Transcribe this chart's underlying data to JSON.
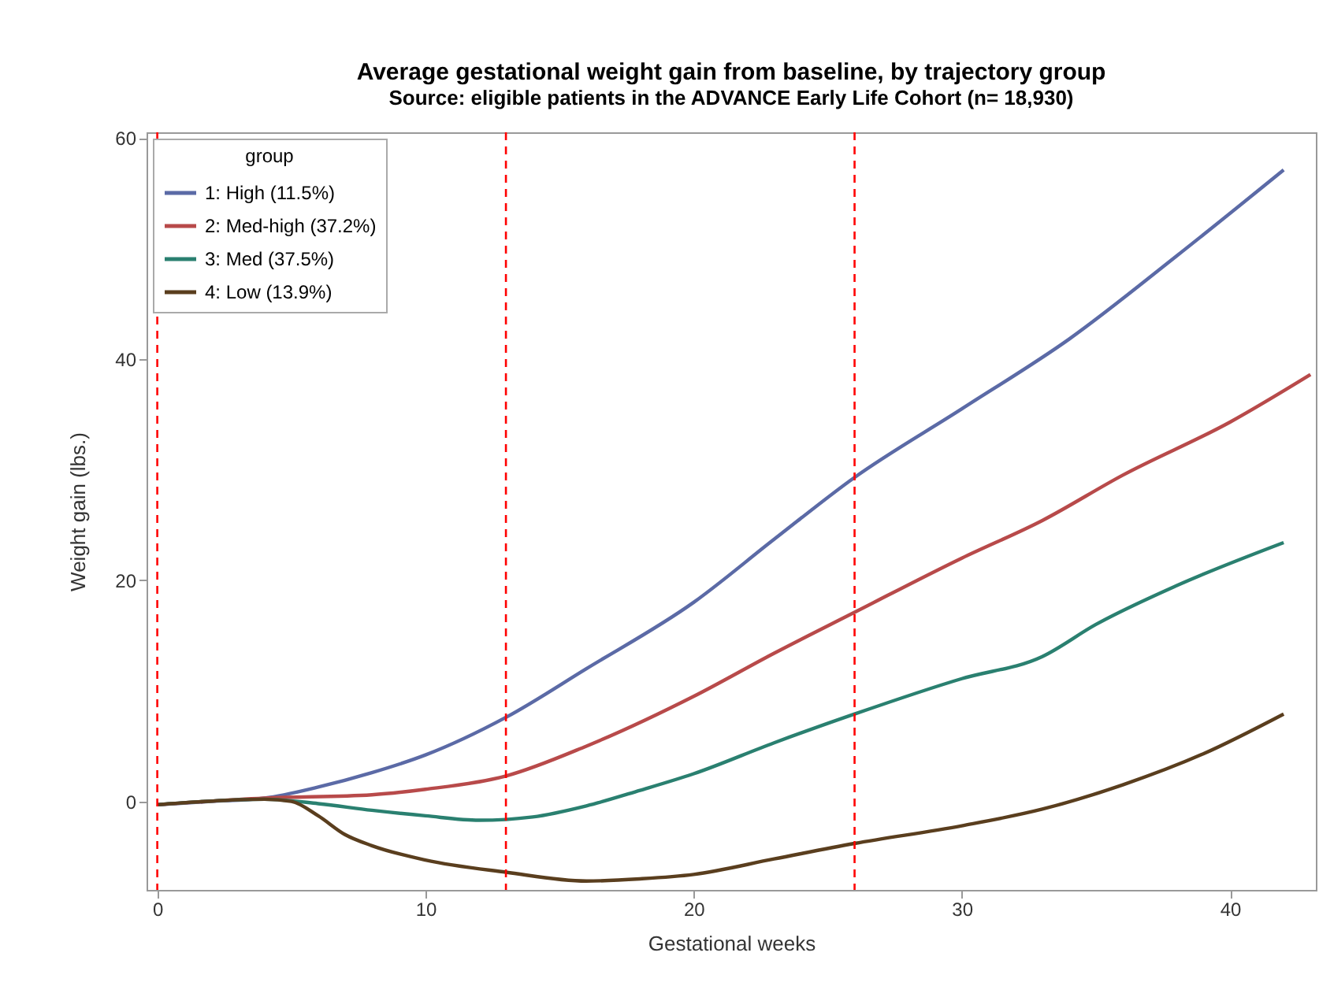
{
  "chart_data": {
    "type": "line",
    "title": "Average gestational weight gain from baseline, by trajectory group",
    "subtitle": "Source: eligible patients in the ADVANCE Early Life Cohort (n= 18,930)",
    "xlabel": "Gestational weeks",
    "ylabel": "Weight gain (lbs.)",
    "legend_title": "group",
    "legend": "top left",
    "grid": false,
    "marker": "none",
    "line_style": "solid",
    "xlim": [
      -0.4,
      43.2
    ],
    "xticks": [
      0,
      10,
      20,
      30,
      40
    ],
    "ylim": [
      -8,
      60.5
    ],
    "yticks": [
      0,
      20,
      40,
      60
    ],
    "series": [
      {
        "name": "1: High (11.5%)",
        "color": "#5b6aa6",
        "x": [
          0,
          2,
          4,
          6,
          8,
          10,
          13,
          16,
          20,
          23,
          26,
          30,
          34,
          38,
          42
        ],
        "values": [
          -0.3,
          0,
          0.3,
          1.3,
          2.6,
          4.2,
          7.6,
          12,
          18,
          23.7,
          29.3,
          35.5,
          41.8,
          49.3,
          57.1
        ]
      },
      {
        "name": "2: Med-high (37.2%)",
        "color": "#b84a4a",
        "x": [
          0,
          4,
          8,
          10,
          13,
          16,
          20,
          23,
          26,
          30,
          33,
          36,
          40,
          43
        ],
        "values": [
          -0.3,
          0.3,
          0.6,
          1.1,
          2.3,
          5,
          9.5,
          13.4,
          17.1,
          22,
          25.4,
          29.5,
          34.3,
          38.6
        ]
      },
      {
        "name": "3: Med (37.5%)",
        "color": "#2a8070",
        "x": [
          0,
          4,
          6,
          8,
          10,
          12,
          14,
          16,
          18,
          20,
          23,
          26,
          30,
          33,
          35,
          38,
          42
        ],
        "values": [
          -0.3,
          0.2,
          -0.2,
          -0.8,
          -1.3,
          -1.7,
          -1.4,
          -0.4,
          1,
          2.5,
          5.3,
          7.9,
          11.1,
          13.1,
          16,
          19.5,
          23.4
        ]
      },
      {
        "name": "4: Low (13.9%)",
        "color": "#5a3e1e",
        "x": [
          0,
          4,
          5,
          6,
          7,
          8,
          10,
          13,
          16,
          18,
          20,
          23,
          26,
          30,
          33,
          36,
          39,
          42
        ],
        "values": [
          -0.3,
          0.2,
          0,
          -1.3,
          -3,
          -4,
          -5.3,
          -6.4,
          -7.2,
          -7,
          -6.6,
          -5.2,
          -3.8,
          -2.2,
          -0.7,
          1.5,
          4.3,
          7.9
        ]
      }
    ],
    "ref_lines": [
      {
        "axis": "x",
        "value": 0,
        "color": "#ff0000",
        "line_style": "dashed"
      },
      {
        "axis": "x",
        "value": 13,
        "color": "#ff0000",
        "line_style": "dashed"
      },
      {
        "axis": "x",
        "value": 26,
        "color": "#ff0000",
        "line_style": "dashed"
      }
    ]
  }
}
